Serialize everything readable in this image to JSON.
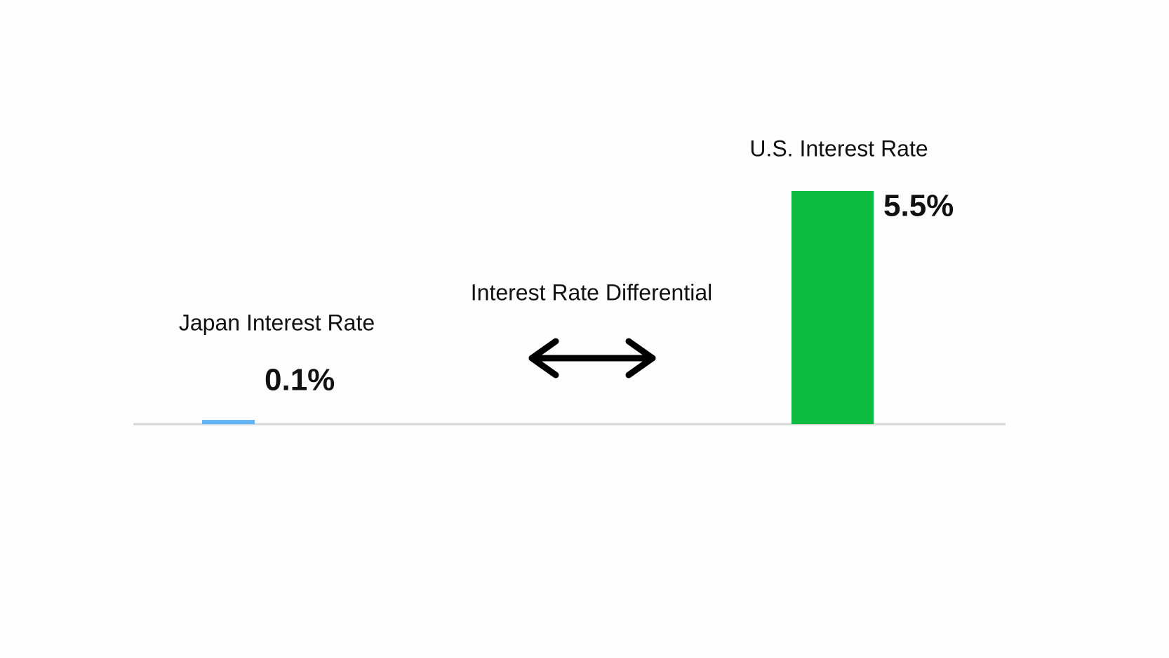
{
  "chart_data": {
    "type": "bar",
    "categories": [
      "Japan Interest Rate",
      "U.S. Interest Rate"
    ],
    "values": [
      0.1,
      5.5
    ],
    "value_labels": [
      "0.1%",
      "5.5%"
    ],
    "colors": [
      "#64b5f6",
      "#0dba42"
    ],
    "annotation": "Interest Rate Differential"
  }
}
